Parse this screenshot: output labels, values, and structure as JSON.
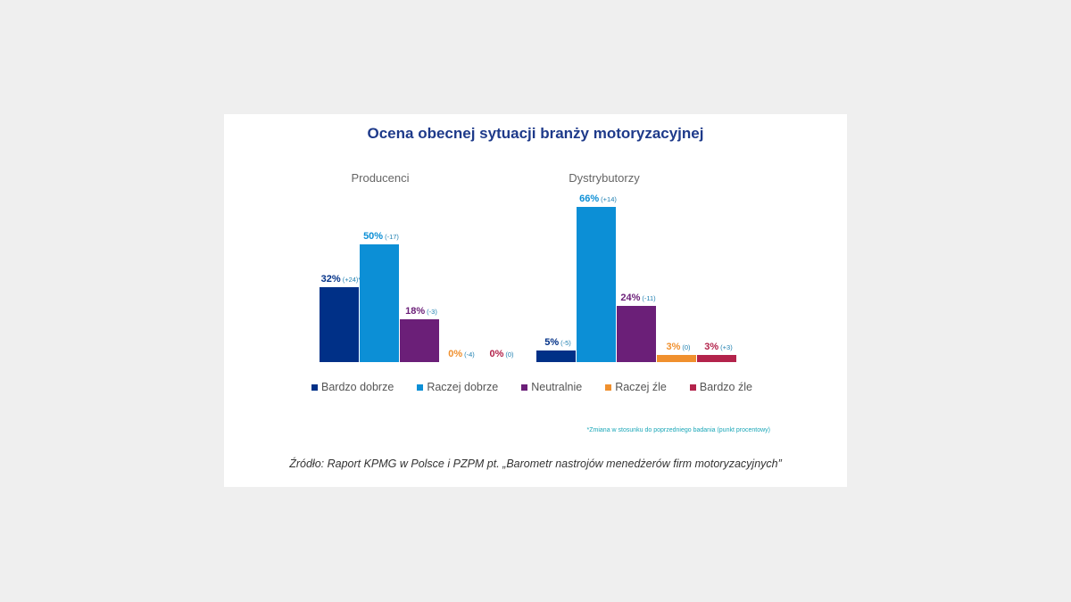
{
  "chart_data": {
    "type": "bar",
    "title": "Ocena obecnej sytuacji branży motoryzacyjnej",
    "unit": "%",
    "ylim": [
      0,
      66
    ],
    "categories": [
      "Bardzo dobrze",
      "Raczej dobrze",
      "Neutralnie",
      "Raczej źle",
      "Bardzo źle"
    ],
    "colors": [
      "#003087",
      "#0c8fd6",
      "#6b1f78",
      "#f0902e",
      "#b3234b"
    ],
    "groups": [
      {
        "name": "Producenci",
        "values": [
          32,
          50,
          18,
          0,
          0
        ],
        "labels": [
          "32%",
          "50%",
          "18%",
          "0%",
          "0%"
        ],
        "changes": [
          "(+24)*",
          "(-17)",
          "(-3)",
          "(-4)",
          "(0)"
        ]
      },
      {
        "name": "Dystrybutorzy",
        "values": [
          5,
          66,
          24,
          3,
          3
        ],
        "labels": [
          "5%",
          "66%",
          "24%",
          "3%",
          "3%"
        ],
        "changes": [
          "(-5)",
          "(+14)",
          "(-11)",
          "(0)",
          "(+3)"
        ]
      }
    ],
    "footnote": "*Zmiana w stosunku do poprzedniego badania (punkt procentowy)",
    "source": "Źródło: Raport KPMG w Polsce i PZPM pt. „Barometr nastrojów menedżerów firm motoryzacyjnych”"
  }
}
